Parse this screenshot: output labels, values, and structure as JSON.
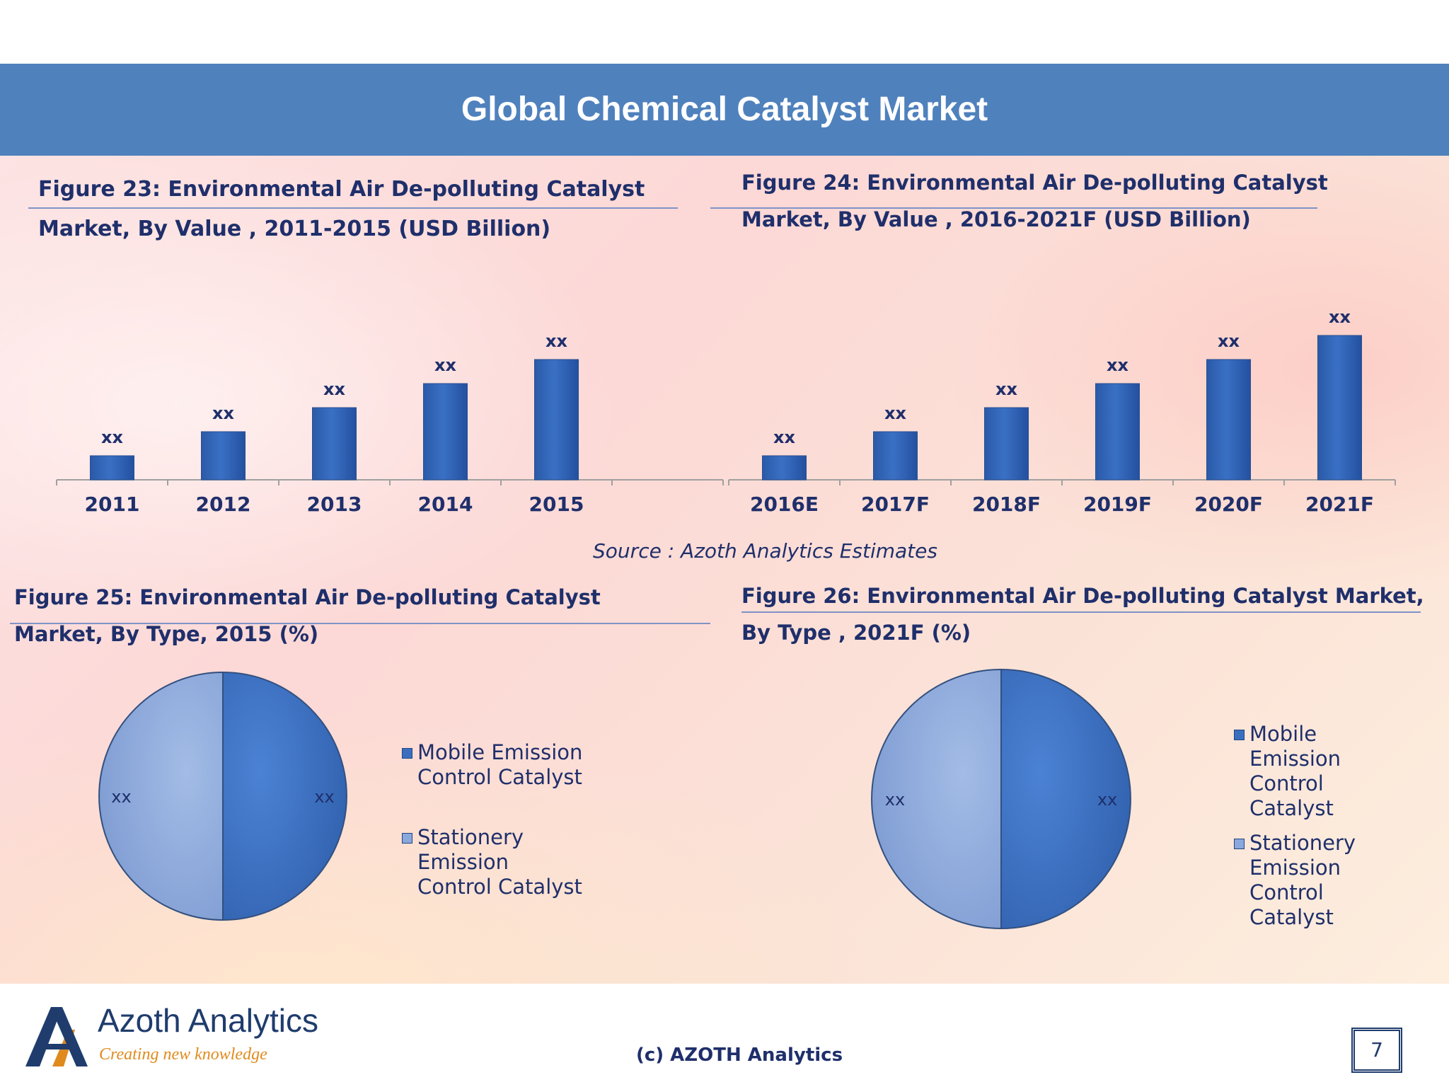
{
  "header": {
    "title": "Global Chemical Catalyst Market"
  },
  "figures": {
    "fig23": {
      "title_line1": "Figure 23: Environmental Air De-polluting Catalyst",
      "title_line2": "Market, By Value , 2011-2015 (USD Billion)"
    },
    "fig24": {
      "title_line1": "Figure 24: Environmental Air De-polluting Catalyst",
      "title_line2": "Market, By Value , 2016-2021F (USD Billion)"
    },
    "fig25": {
      "title_line1": "Figure 25: Environmental Air De-polluting Catalyst",
      "title_line2": "Market, By Type, 2015 (%)"
    },
    "fig26": {
      "title_line1": "Figure  26:  Environmental  Air  De-polluting  Catalyst  Market,",
      "title_line2": "By Type , 2021F (%)"
    }
  },
  "source": "Source : Azoth Analytics Estimates",
  "footer": {
    "copyright": "(c) AZOTH Analytics",
    "logo_name": "Azoth Analytics",
    "logo_tagline": "Creating new knowledge",
    "page_number": "7"
  },
  "colors": {
    "bar": "#3a70c4",
    "pie_dark": "#3a6fc0",
    "pie_light": "#8aa8dc",
    "text": "#1f2f6b",
    "header": "#4f81bd"
  },
  "chart_data": [
    {
      "type": "bar",
      "categories": [
        "2011",
        "2012",
        "2013",
        "2014",
        "2015"
      ],
      "values": [
        1,
        2,
        3,
        4,
        5
      ],
      "data_labels": [
        "xx",
        "xx",
        "xx",
        "xx",
        "xx"
      ],
      "ylim": [
        0,
        6
      ]
    },
    {
      "type": "bar",
      "categories": [
        "2016E",
        "2017F",
        "2018F",
        "2019F",
        "2020F",
        "2021F"
      ],
      "values": [
        1,
        2,
        3,
        4,
        5,
        6
      ],
      "data_labels": [
        "xx",
        "xx",
        "xx",
        "xx",
        "xx",
        "xx"
      ],
      "ylim": [
        0,
        6
      ]
    },
    {
      "type": "pie",
      "labels": [
        "Mobile Emission Control Catalyst",
        "Stationery Emission Control Catalyst"
      ],
      "values": [
        50,
        50
      ],
      "data_labels": [
        "xx",
        "xx"
      ]
    },
    {
      "type": "pie",
      "labels": [
        "Mobile Emission Control Catalyst",
        "Stationery Emission Control Catalyst"
      ],
      "values": [
        50,
        50
      ],
      "data_labels": [
        "xx",
        "xx"
      ]
    }
  ],
  "legend_lines": {
    "left": [
      [
        "Mobile Emission",
        "Control Catalyst"
      ],
      [
        "Stationery",
        "Emission",
        "Control Catalyst"
      ]
    ],
    "right": [
      [
        "Mobile",
        "Emission",
        "Control",
        "Catalyst"
      ],
      [
        "Stationery",
        "Emission",
        "Control",
        "Catalyst"
      ]
    ]
  }
}
